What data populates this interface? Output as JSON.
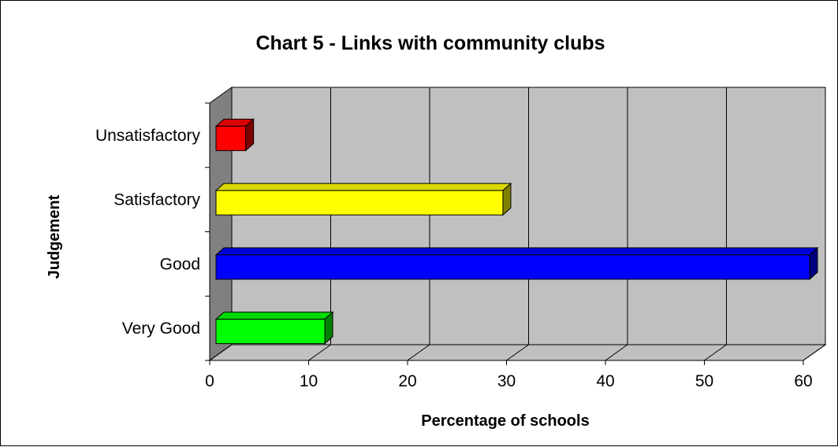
{
  "chart_data": {
    "type": "bar",
    "orientation": "horizontal",
    "style": "3d",
    "title": "Chart 5 - Links with community clubs",
    "xlabel": "Percentage of schools",
    "ylabel": "Judgement",
    "categories": [
      "Very Good",
      "Good",
      "Satisfactory",
      "Unsatisfactory"
    ],
    "values": [
      11,
      60,
      29,
      3
    ],
    "bar_colors": [
      "#00ff00",
      "#0000ff",
      "#ffff00",
      "#ff0000"
    ],
    "xlim": [
      0,
      60
    ],
    "xticks": [
      "0",
      "10",
      "20",
      "30",
      "40",
      "50",
      "60"
    ],
    "grid": true,
    "legend": false,
    "wall_color": "#c0c0c0"
  }
}
